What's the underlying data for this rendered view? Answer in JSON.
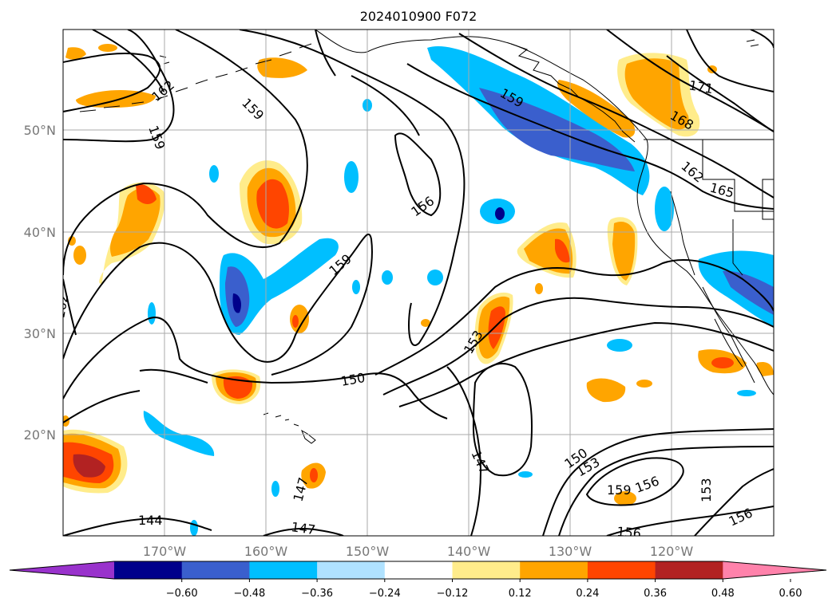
{
  "title": "2024010900 F072",
  "axes": {
    "lat_labels": [
      "50°N",
      "40°N",
      "30°N",
      "20°N"
    ],
    "lon_labels": [
      "170°W",
      "160°W",
      "150°W",
      "140°W",
      "130°W",
      "120°W"
    ]
  },
  "colorbar": {
    "extend": "both",
    "ticks": [
      "−0.60",
      "−0.48",
      "−0.36",
      "−0.24",
      "−0.12",
      "0.12",
      "0.24",
      "0.36",
      "0.48",
      "0.60"
    ],
    "colors": [
      "#9932cc",
      "#00008b",
      "#3a5fcd",
      "#00bfff",
      "#b0e2ff",
      "#ffffff",
      "#ffec8b",
      "#ffa500",
      "#ff4500",
      "#b22222",
      "#ff82ab"
    ]
  },
  "contour_labels": [
    "162",
    "159",
    "159",
    "156",
    "159",
    "153",
    "150",
    "147",
    "147",
    "144",
    "147",
    "150",
    "153",
    "159",
    "156",
    "153",
    "156",
    "156",
    "159",
    "162",
    "165",
    "168",
    "171",
    "162"
  ],
  "coastline_color": "#000000",
  "grid": true
}
